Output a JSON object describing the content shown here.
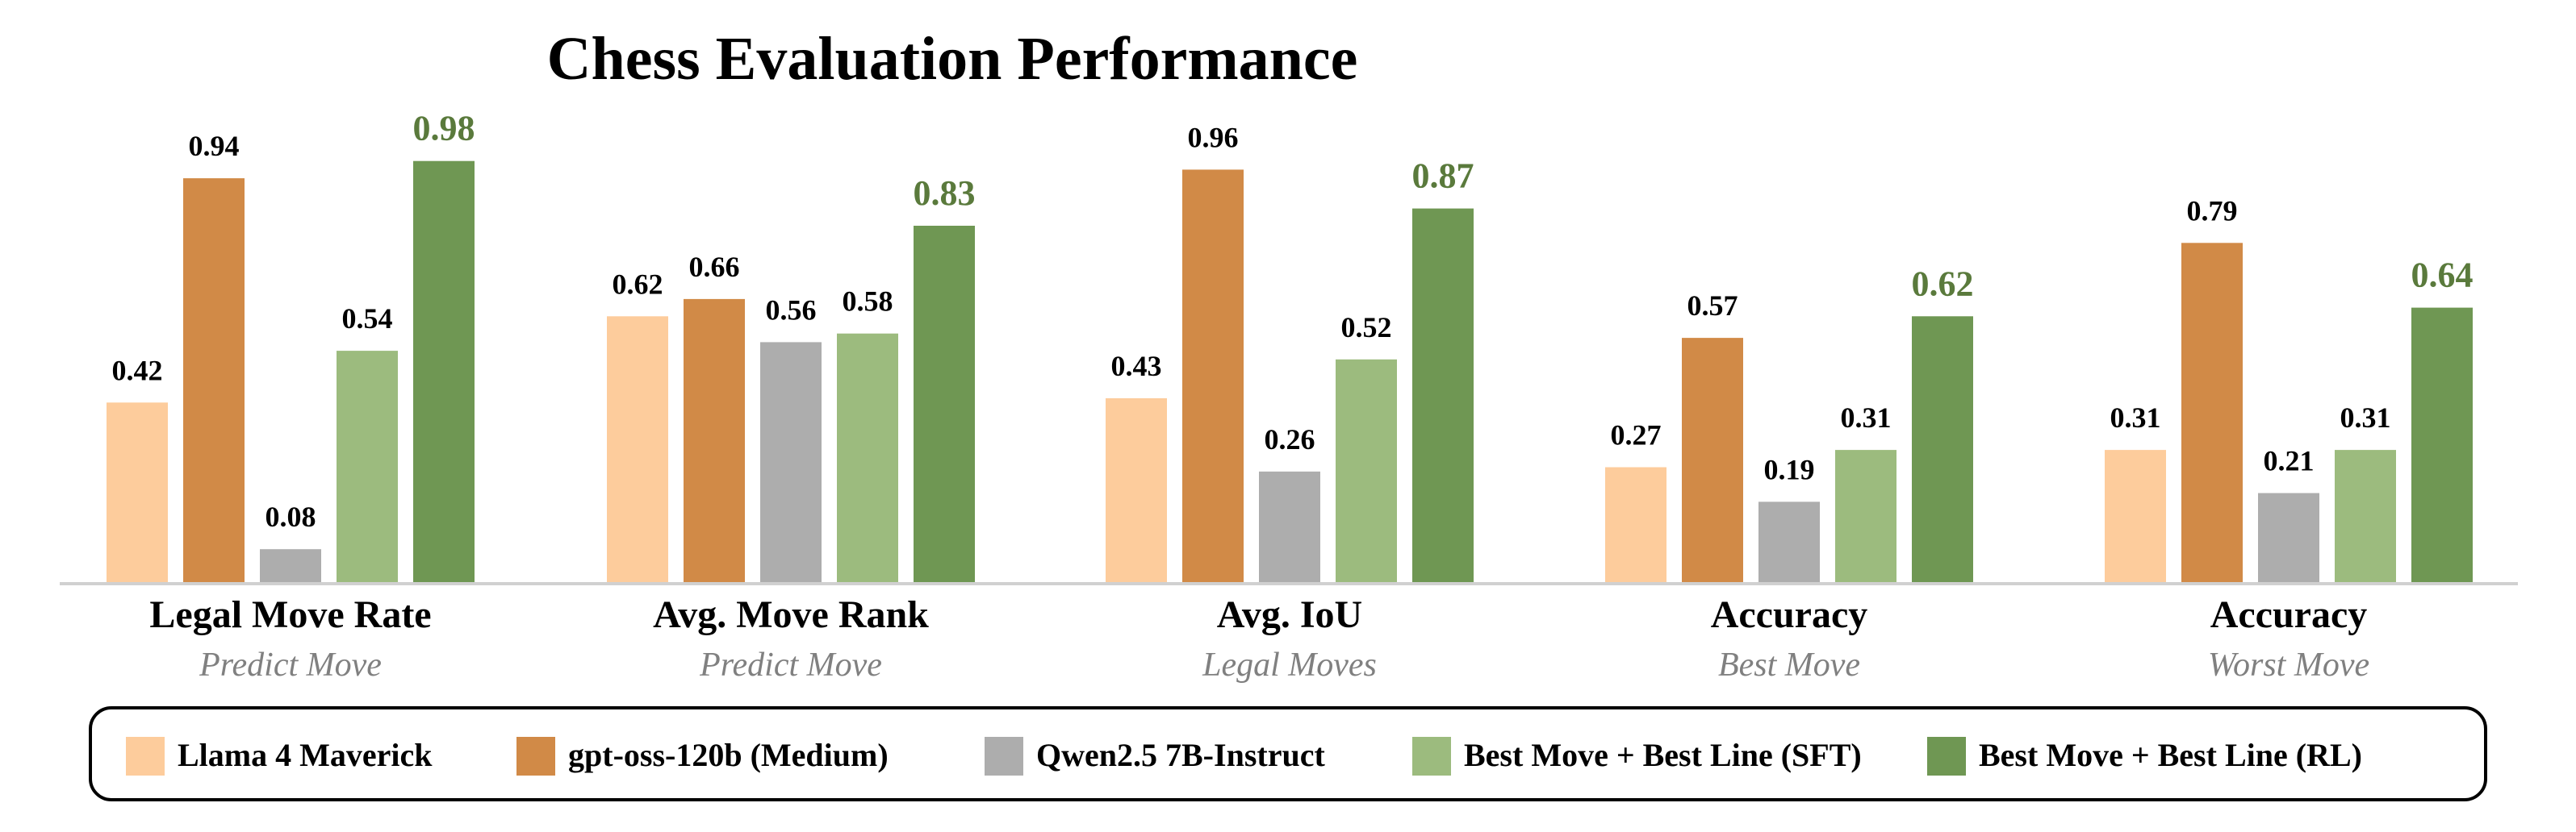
{
  "chart_data": {
    "type": "bar",
    "title": "Chess Evaluation Performance",
    "groups": [
      {
        "metric": "Legal Move Rate",
        "task": "Predict Move"
      },
      {
        "metric": "Avg. Move Rank",
        "task": "Predict Move"
      },
      {
        "metric": "Avg. IoU",
        "task": "Legal Moves"
      },
      {
        "metric": "Accuracy",
        "task": "Best Move"
      },
      {
        "metric": "Accuracy",
        "task": "Worst Move"
      }
    ],
    "series": [
      {
        "name": "Llama 4 Maverick",
        "color": "#FDCC9C",
        "values": [
          0.42,
          0.62,
          0.43,
          0.27,
          0.31
        ]
      },
      {
        "name": "gpt-oss-120b (Medium)",
        "color": "#D18A47",
        "values": [
          0.94,
          0.66,
          0.96,
          0.57,
          0.79
        ]
      },
      {
        "name": "Qwen2.5 7B-Instruct",
        "color": "#ADADAD",
        "values": [
          0.08,
          0.56,
          0.26,
          0.19,
          0.21
        ]
      },
      {
        "name": "Best Move + Best Line (SFT)",
        "color": "#9CBB7E",
        "values": [
          0.54,
          0.58,
          0.52,
          0.31,
          0.31
        ]
      },
      {
        "name": "Best Move + Best Line (RL)",
        "color": "#6F9753",
        "values": [
          0.98,
          0.83,
          0.87,
          0.62,
          0.64
        ]
      }
    ],
    "value_labels": [
      [
        "0.42",
        "0.62",
        "0.43",
        "0.27",
        "0.31"
      ],
      [
        "0.94",
        "0.66",
        "0.96",
        "0.57",
        "0.79"
      ],
      [
        "0.08",
        "0.56",
        "0.26",
        "0.19",
        "0.21"
      ],
      [
        "0.54",
        "0.58",
        "0.52",
        "0.31",
        "0.31"
      ],
      [
        "0.98",
        "0.83",
        "0.87",
        "0.62",
        "0.64"
      ]
    ],
    "highlight_series": 4,
    "highlight_label_color": "#5A7A3C",
    "label_color": "#000000",
    "subtitle_color": "#808080",
    "baseline_color": "#D0D0D0",
    "ylim": [
      0,
      1
    ],
    "grid": false,
    "legend_position": "bottom"
  }
}
